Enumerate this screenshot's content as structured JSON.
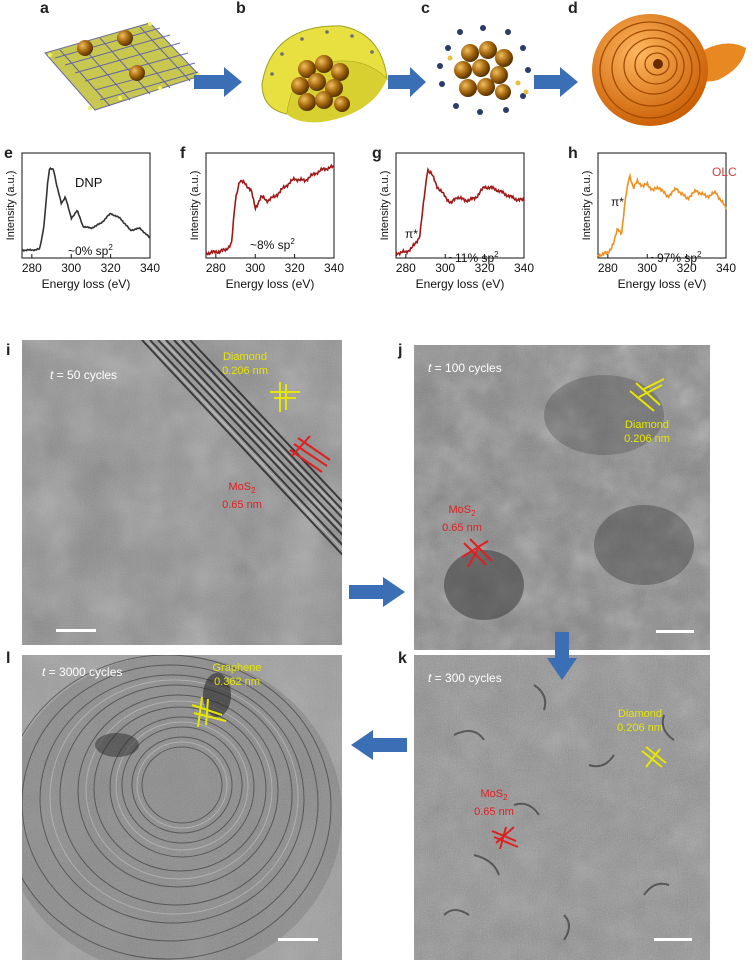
{
  "top_panels": [
    {
      "label": "a"
    },
    {
      "label": "b"
    },
    {
      "label": "c"
    },
    {
      "label": "d"
    }
  ],
  "colors": {
    "dnp": "#333333",
    "panel_f": "#a01818",
    "panel_g": "#a01818",
    "olc": "#f09020",
    "yellow": "#e6e600",
    "red": "#e02020",
    "arrow": "#3a6fb5"
  },
  "spectra": [
    {
      "label": "e",
      "note": "DNP",
      "sp2": "~0% sp",
      "sup": "2",
      "pi": "",
      "legend": ""
    },
    {
      "label": "f",
      "note": "",
      "sp2": "~8% sp",
      "sup": "2",
      "pi": "",
      "legend": ""
    },
    {
      "label": "g",
      "note": "",
      "sp2": "~11% sp",
      "sup": "2",
      "pi": "π*",
      "legend": ""
    },
    {
      "label": "h",
      "note": "",
      "sp2": "~97% sp",
      "sup": "2",
      "pi": "π*",
      "legend": "OLC"
    }
  ],
  "chart_data": [
    {
      "type": "line",
      "title": "e",
      "xlabel": "Energy loss (eV)",
      "ylabel": "Intensity (a.u.)",
      "xlim": [
        275,
        340
      ],
      "xticks": [
        280,
        300,
        320,
        340
      ],
      "x": [
        275,
        280,
        284,
        286,
        288,
        289,
        291,
        293,
        295,
        297,
        300,
        303,
        306,
        310,
        315,
        320,
        325,
        330,
        335,
        340
      ],
      "y": [
        0.08,
        0.08,
        0.09,
        0.3,
        0.75,
        0.9,
        0.9,
        0.7,
        0.55,
        0.62,
        0.4,
        0.48,
        0.32,
        0.3,
        0.35,
        0.45,
        0.4,
        0.28,
        0.3,
        0.2
      ]
    },
    {
      "type": "line",
      "title": "f",
      "xlabel": "Energy loss (eV)",
      "ylabel": "Intensity (a.u.)",
      "xlim": [
        275,
        340
      ],
      "xticks": [
        280,
        300,
        320,
        340
      ],
      "x": [
        275,
        280,
        285,
        288,
        290,
        292,
        295,
        298,
        300,
        303,
        306,
        310,
        315,
        320,
        325,
        330,
        335,
        340
      ],
      "y": [
        0.05,
        0.06,
        0.08,
        0.15,
        0.6,
        0.78,
        0.75,
        0.68,
        0.5,
        0.62,
        0.58,
        0.62,
        0.72,
        0.8,
        0.78,
        0.85,
        0.9,
        0.92
      ]
    },
    {
      "type": "line",
      "title": "g",
      "xlabel": "Energy loss (eV)",
      "ylabel": "Intensity (a.u.)",
      "xlim": [
        275,
        340
      ],
      "xticks": [
        280,
        300,
        320,
        340
      ],
      "x": [
        275,
        280,
        283,
        285,
        287,
        289,
        291,
        293,
        296,
        300,
        303,
        306,
        310,
        315,
        320,
        325,
        330,
        335,
        340
      ],
      "y": [
        0.05,
        0.06,
        0.1,
        0.15,
        0.22,
        0.55,
        0.9,
        0.85,
        0.72,
        0.62,
        0.55,
        0.62,
        0.58,
        0.6,
        0.72,
        0.7,
        0.65,
        0.6,
        0.58
      ]
    },
    {
      "type": "line",
      "title": "h",
      "xlabel": "Energy loss (eV)",
      "ylabel": "Intensity (a.u.)",
      "xlim": [
        275,
        340
      ],
      "xticks": [
        280,
        300,
        320,
        340
      ],
      "x": [
        275,
        280,
        283,
        285,
        287,
        289,
        291,
        293,
        295,
        298,
        300,
        303,
        306,
        310,
        315,
        320,
        325,
        330,
        335,
        340
      ],
      "y": [
        0.03,
        0.05,
        0.15,
        0.3,
        0.25,
        0.6,
        0.85,
        0.7,
        0.78,
        0.72,
        0.75,
        0.68,
        0.72,
        0.62,
        0.7,
        0.6,
        0.68,
        0.62,
        0.66,
        0.5
      ]
    }
  ],
  "tem": [
    {
      "label": "i",
      "cycles_prefix": "t",
      "cycles": " = 50 cycles",
      "annot": [
        {
          "kind": "yellow",
          "line1": "Diamond",
          "line2": "0.206 nm"
        },
        {
          "kind": "red",
          "line1": "MoS",
          "sub": "2",
          "line2": "0.65 nm"
        }
      ]
    },
    {
      "label": "j",
      "cycles_prefix": "t",
      "cycles": " = 100 cycles",
      "annot": [
        {
          "kind": "yellow",
          "line1": "Diamond",
          "line2": "0.206 nm"
        },
        {
          "kind": "red",
          "line1": "MoS",
          "sub": "2",
          "line2": "0.65 nm"
        }
      ]
    },
    {
      "label": "l",
      "cycles_prefix": "t",
      "cycles": " = 3000 cycles",
      "annot": [
        {
          "kind": "yellow",
          "line1": "Graphene",
          "line2": "0.362 nm"
        }
      ]
    },
    {
      "label": "k",
      "cycles_prefix": "t",
      "cycles": " = 300 cycles",
      "annot": [
        {
          "kind": "yellow",
          "line1": "Diamond",
          "line2": "0.206 nm"
        },
        {
          "kind": "red",
          "line1": "MoS",
          "sub": "2",
          "line2": "0.65 nm"
        }
      ]
    }
  ]
}
